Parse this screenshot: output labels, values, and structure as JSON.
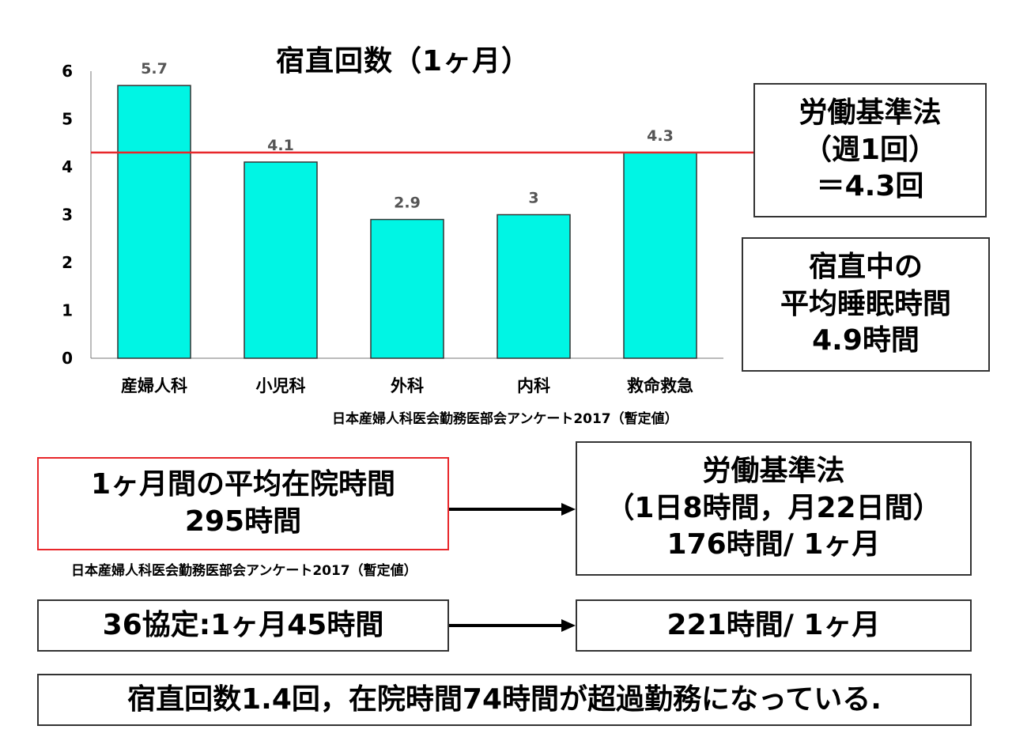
{
  "chart_data": {
    "type": "bar",
    "title": "宿直回数（1ヶ月）",
    "categories": [
      "産婦人科",
      "小児科",
      "外科",
      "内科",
      "救命救急"
    ],
    "values": [
      5.7,
      4.1,
      2.9,
      3,
      4.3
    ],
    "value_labels": [
      "5.7",
      "4.1",
      "2.9",
      "3",
      "4.3"
    ],
    "yticks": [
      "0",
      "1",
      "2",
      "3",
      "4",
      "5",
      "6"
    ],
    "ylim": [
      0,
      6
    ],
    "reference_line": 4.3,
    "colors": {
      "bar": "#00f5e4",
      "bar_border": "#333333",
      "reference_line": "#e8262a"
    }
  },
  "chart_source": "日本産婦人科医会勤務医部会アンケート2017（暫定値）",
  "box_labor_law_weekly": [
    "労働基準法",
    "（週1回）",
    "＝4.3回"
  ],
  "box_sleep": [
    "宿直中の",
    "平均睡眠時間",
    "4.9時間"
  ],
  "box_avg_hospital_time": [
    "1ヶ月間の平均在院時間",
    "295時間"
  ],
  "box_avg_source": "日本産婦人科医会勤務医部会アンケート2017（暫定値）",
  "box_labor_law_monthly": [
    "労働基準法",
    "（1日8時間，月22日間）",
    "176時間/ 1ヶ月"
  ],
  "box_36_agreement": "36協定:1ヶ月45時間",
  "box_221": "221時間/ 1ヶ月",
  "conclusion": "宿直回数1.4回，在院時間74時間が超過勤務になっている."
}
